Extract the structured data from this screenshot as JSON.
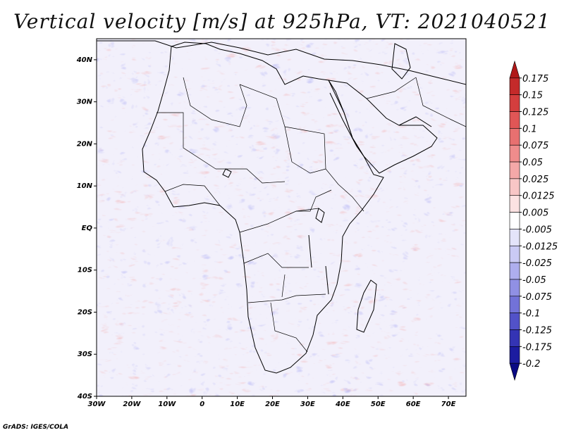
{
  "title": "Vertical velocity [m/s] at 925hPa, VT: 2021040521",
  "credit": "GrADS: IGES/COLA",
  "map": {
    "lon_range": [
      -30,
      75
    ],
    "lat_range": [
      -40,
      45
    ],
    "lat_ticks": [
      {
        "value": 40,
        "label": "40N"
      },
      {
        "value": 30,
        "label": "30N"
      },
      {
        "value": 20,
        "label": "20N"
      },
      {
        "value": 10,
        "label": "10N"
      },
      {
        "value": 0,
        "label": "EQ"
      },
      {
        "value": -10,
        "label": "10S"
      },
      {
        "value": -20,
        "label": "20S"
      },
      {
        "value": -30,
        "label": "30S"
      },
      {
        "value": -40,
        "label": "40S"
      }
    ],
    "lon_ticks": [
      {
        "value": -30,
        "label": "30W"
      },
      {
        "value": -20,
        "label": "20W"
      },
      {
        "value": -10,
        "label": "10W"
      },
      {
        "value": 0,
        "label": "0"
      },
      {
        "value": 10,
        "label": "10E"
      },
      {
        "value": 20,
        "label": "20E"
      },
      {
        "value": 30,
        "label": "30E"
      },
      {
        "value": 40,
        "label": "40E"
      },
      {
        "value": 50,
        "label": "50E"
      },
      {
        "value": 60,
        "label": "60E"
      },
      {
        "value": 70,
        "label": "70E"
      }
    ]
  },
  "colorbar": {
    "labels": [
      "0.175",
      "0.15",
      "0.125",
      "0.1",
      "0.075",
      "0.05",
      "0.025",
      "0.0125",
      "0.005",
      "-0.005",
      "-0.0125",
      "-0.025",
      "-0.05",
      "-0.075",
      "-0.1",
      "-0.125",
      "-0.175",
      "-0.2"
    ],
    "colors": [
      "#b01818",
      "#c42a2a",
      "#d43e3e",
      "#e05656",
      "#e87070",
      "#ef8c8c",
      "#f4a8a8",
      "#f8c6c6",
      "#fce2e2",
      "#ffffff",
      "#e4e4fa",
      "#cacaf4",
      "#aeaeee",
      "#9090e4",
      "#7272d8",
      "#5252c8",
      "#3434b4",
      "#1c1ca0",
      "#0a0a84"
    ]
  }
}
